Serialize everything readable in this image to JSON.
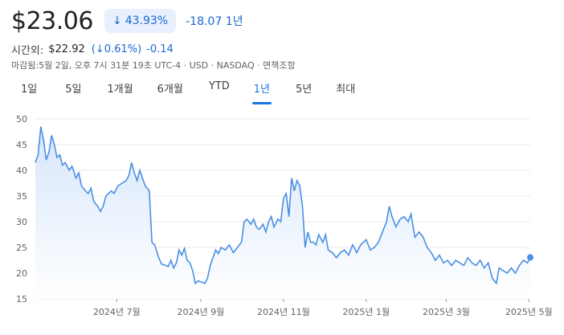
{
  "header": {
    "price": "$23.06",
    "change_pct": "43.93%",
    "change_abs": "-18.07 1년",
    "arrow_icon": "arrow-down-icon"
  },
  "after_hours": {
    "label": "시간외:",
    "price": "$22.92",
    "pct": "0.61%",
    "open_paren": "(",
    "close_paren": ")",
    "abs": "-0.14"
  },
  "meta": "마감됨:5월 2일, 오후 7시 31분 19초 UTC-4 · USD · NASDAQ · 면책조항",
  "tabs": [
    {
      "label": "1일"
    },
    {
      "label": "5일"
    },
    {
      "label": "1개월"
    },
    {
      "label": "6개월"
    },
    {
      "label": "YTD"
    },
    {
      "label": "1년",
      "active": true
    },
    {
      "label": "5년"
    },
    {
      "label": "최대"
    }
  ],
  "colors": {
    "line": "#4a90e2",
    "fill_top": "#d6e6fb",
    "fill_bottom": "#ffffff",
    "accent": "#1a73e8"
  },
  "chart_data": {
    "type": "area",
    "y_ticks": [
      50,
      45,
      40,
      35,
      30,
      25,
      20,
      15
    ],
    "ylim": [
      15,
      50
    ],
    "x_labels": [
      {
        "label": "2024년 7월",
        "x": "2024-07-01"
      },
      {
        "label": "2024년 9월",
        "x": "2024-09-01"
      },
      {
        "label": "2024년 11월",
        "x": "2024-11-01"
      },
      {
        "label": "2025년 1월",
        "x": "2025-01-01"
      },
      {
        "label": "2025년 3월",
        "x": "2025-03-01"
      },
      {
        "label": "2025년 5월",
        "x": "2025-05-01"
      }
    ],
    "xlim": [
      "2024-05-02",
      "2025-05-02"
    ],
    "grid": true,
    "points": [
      [
        "2024-05-02",
        41.5
      ],
      [
        "2024-05-04",
        43.0
      ],
      [
        "2024-05-06",
        48.5
      ],
      [
        "2024-05-08",
        46.0
      ],
      [
        "2024-05-10",
        42.0
      ],
      [
        "2024-05-12",
        43.5
      ],
      [
        "2024-05-14",
        46.8
      ],
      [
        "2024-05-16",
        45.0
      ],
      [
        "2024-05-18",
        42.5
      ],
      [
        "2024-05-20",
        43.0
      ],
      [
        "2024-05-22",
        41.0
      ],
      [
        "2024-05-24",
        41.5
      ],
      [
        "2024-05-27",
        40.0
      ],
      [
        "2024-05-29",
        40.8
      ],
      [
        "2024-06-01",
        38.5
      ],
      [
        "2024-06-03",
        39.5
      ],
      [
        "2024-06-05",
        37.0
      ],
      [
        "2024-06-08",
        36.0
      ],
      [
        "2024-06-10",
        35.5
      ],
      [
        "2024-06-12",
        36.5
      ],
      [
        "2024-06-14",
        34.0
      ],
      [
        "2024-06-17",
        33.0
      ],
      [
        "2024-06-19",
        32.0
      ],
      [
        "2024-06-21",
        33.0
      ],
      [
        "2024-06-23",
        35.0
      ],
      [
        "2024-06-25",
        35.5
      ],
      [
        "2024-06-27",
        36.0
      ],
      [
        "2024-06-29",
        35.5
      ],
      [
        "2024-07-02",
        37.0
      ],
      [
        "2024-07-05",
        37.5
      ],
      [
        "2024-07-08",
        38.0
      ],
      [
        "2024-07-10",
        39.0
      ],
      [
        "2024-07-12",
        41.5
      ],
      [
        "2024-07-14",
        39.5
      ],
      [
        "2024-07-16",
        38.0
      ],
      [
        "2024-07-18",
        40.0
      ],
      [
        "2024-07-20",
        38.5
      ],
      [
        "2024-07-22",
        37.0
      ],
      [
        "2024-07-25",
        36.0
      ],
      [
        "2024-07-27",
        26.0
      ],
      [
        "2024-07-29",
        25.5
      ],
      [
        "2024-08-01",
        23.0
      ],
      [
        "2024-08-03",
        21.8
      ],
      [
        "2024-08-06",
        21.5
      ],
      [
        "2024-08-08",
        21.3
      ],
      [
        "2024-08-10",
        22.5
      ],
      [
        "2024-08-12",
        21.0
      ],
      [
        "2024-08-14",
        22.0
      ],
      [
        "2024-08-16",
        24.5
      ],
      [
        "2024-08-18",
        23.5
      ],
      [
        "2024-08-20",
        24.8
      ],
      [
        "2024-08-22",
        22.5
      ],
      [
        "2024-08-24",
        22.0
      ],
      [
        "2024-08-26",
        20.5
      ],
      [
        "2024-08-28",
        18.0
      ],
      [
        "2024-08-30",
        18.5
      ],
      [
        "2024-09-02",
        18.2
      ],
      [
        "2024-09-04",
        18.0
      ],
      [
        "2024-09-06",
        19.0
      ],
      [
        "2024-09-08",
        21.5
      ],
      [
        "2024-09-10",
        23.0
      ],
      [
        "2024-09-12",
        24.5
      ],
      [
        "2024-09-14",
        23.8
      ],
      [
        "2024-09-16",
        25.0
      ],
      [
        "2024-09-19",
        24.5
      ],
      [
        "2024-09-22",
        25.5
      ],
      [
        "2024-09-25",
        24.0
      ],
      [
        "2024-09-28",
        25.0
      ],
      [
        "2024-10-01",
        26.0
      ],
      [
        "2024-10-03",
        30.0
      ],
      [
        "2024-10-05",
        30.5
      ],
      [
        "2024-10-08",
        29.5
      ],
      [
        "2024-10-10",
        30.5
      ],
      [
        "2024-10-12",
        29.0
      ],
      [
        "2024-10-14",
        28.5
      ],
      [
        "2024-10-17",
        29.5
      ],
      [
        "2024-10-19",
        28.0
      ],
      [
        "2024-10-21",
        30.0
      ],
      [
        "2024-10-23",
        31.0
      ],
      [
        "2024-10-25",
        29.0
      ],
      [
        "2024-10-28",
        30.5
      ],
      [
        "2024-10-30",
        30.0
      ],
      [
        "2024-11-01",
        34.5
      ],
      [
        "2024-11-03",
        35.5
      ],
      [
        "2024-11-05",
        31.0
      ],
      [
        "2024-11-07",
        38.5
      ],
      [
        "2024-11-09",
        36.0
      ],
      [
        "2024-11-11",
        38.0
      ],
      [
        "2024-11-13",
        37.0
      ],
      [
        "2024-11-15",
        33.0
      ],
      [
        "2024-11-17",
        25.0
      ],
      [
        "2024-11-19",
        28.0
      ],
      [
        "2024-11-21",
        26.0
      ],
      [
        "2024-11-23",
        26.0
      ],
      [
        "2024-11-25",
        25.5
      ],
      [
        "2024-11-27",
        27.5
      ],
      [
        "2024-11-30",
        26.0
      ],
      [
        "2024-12-02",
        27.5
      ],
      [
        "2024-12-04",
        24.5
      ],
      [
        "2024-12-07",
        24.0
      ],
      [
        "2024-12-10",
        23.0
      ],
      [
        "2024-12-13",
        24.0
      ],
      [
        "2024-12-16",
        24.5
      ],
      [
        "2024-12-19",
        23.5
      ],
      [
        "2024-12-22",
        25.5
      ],
      [
        "2024-12-25",
        24.0
      ],
      [
        "2024-12-28",
        25.5
      ],
      [
        "2025-01-01",
        26.5
      ],
      [
        "2025-01-04",
        24.5
      ],
      [
        "2025-01-07",
        25.0
      ],
      [
        "2025-01-10",
        26.0
      ],
      [
        "2025-01-13",
        28.0
      ],
      [
        "2025-01-16",
        30.0
      ],
      [
        "2025-01-18",
        33.0
      ],
      [
        "2025-01-20",
        31.0
      ],
      [
        "2025-01-23",
        29.0
      ],
      [
        "2025-01-26",
        30.5
      ],
      [
        "2025-01-29",
        31.0
      ],
      [
        "2025-02-01",
        30.0
      ],
      [
        "2025-02-03",
        31.5
      ],
      [
        "2025-02-06",
        27.0
      ],
      [
        "2025-02-09",
        28.0
      ],
      [
        "2025-02-12",
        27.0
      ],
      [
        "2025-02-15",
        25.0
      ],
      [
        "2025-02-18",
        24.0
      ],
      [
        "2025-02-21",
        22.5
      ],
      [
        "2025-02-24",
        23.5
      ],
      [
        "2025-02-27",
        22.0
      ],
      [
        "2025-03-02",
        22.5
      ],
      [
        "2025-03-05",
        21.5
      ],
      [
        "2025-03-08",
        22.5
      ],
      [
        "2025-03-11",
        22.0
      ],
      [
        "2025-03-14",
        21.5
      ],
      [
        "2025-03-17",
        23.0
      ],
      [
        "2025-03-20",
        22.0
      ],
      [
        "2025-03-23",
        21.5
      ],
      [
        "2025-03-26",
        22.5
      ],
      [
        "2025-03-29",
        21.0
      ],
      [
        "2025-04-01",
        22.0
      ],
      [
        "2025-04-04",
        19.0
      ],
      [
        "2025-04-07",
        18.0
      ],
      [
        "2025-04-09",
        21.0
      ],
      [
        "2025-04-12",
        20.5
      ],
      [
        "2025-04-15",
        20.0
      ],
      [
        "2025-04-18",
        21.0
      ],
      [
        "2025-04-21",
        20.0
      ],
      [
        "2025-04-24",
        21.5
      ],
      [
        "2025-04-27",
        22.5
      ],
      [
        "2025-04-30",
        22.0
      ],
      [
        "2025-05-02",
        23.06
      ]
    ]
  }
}
